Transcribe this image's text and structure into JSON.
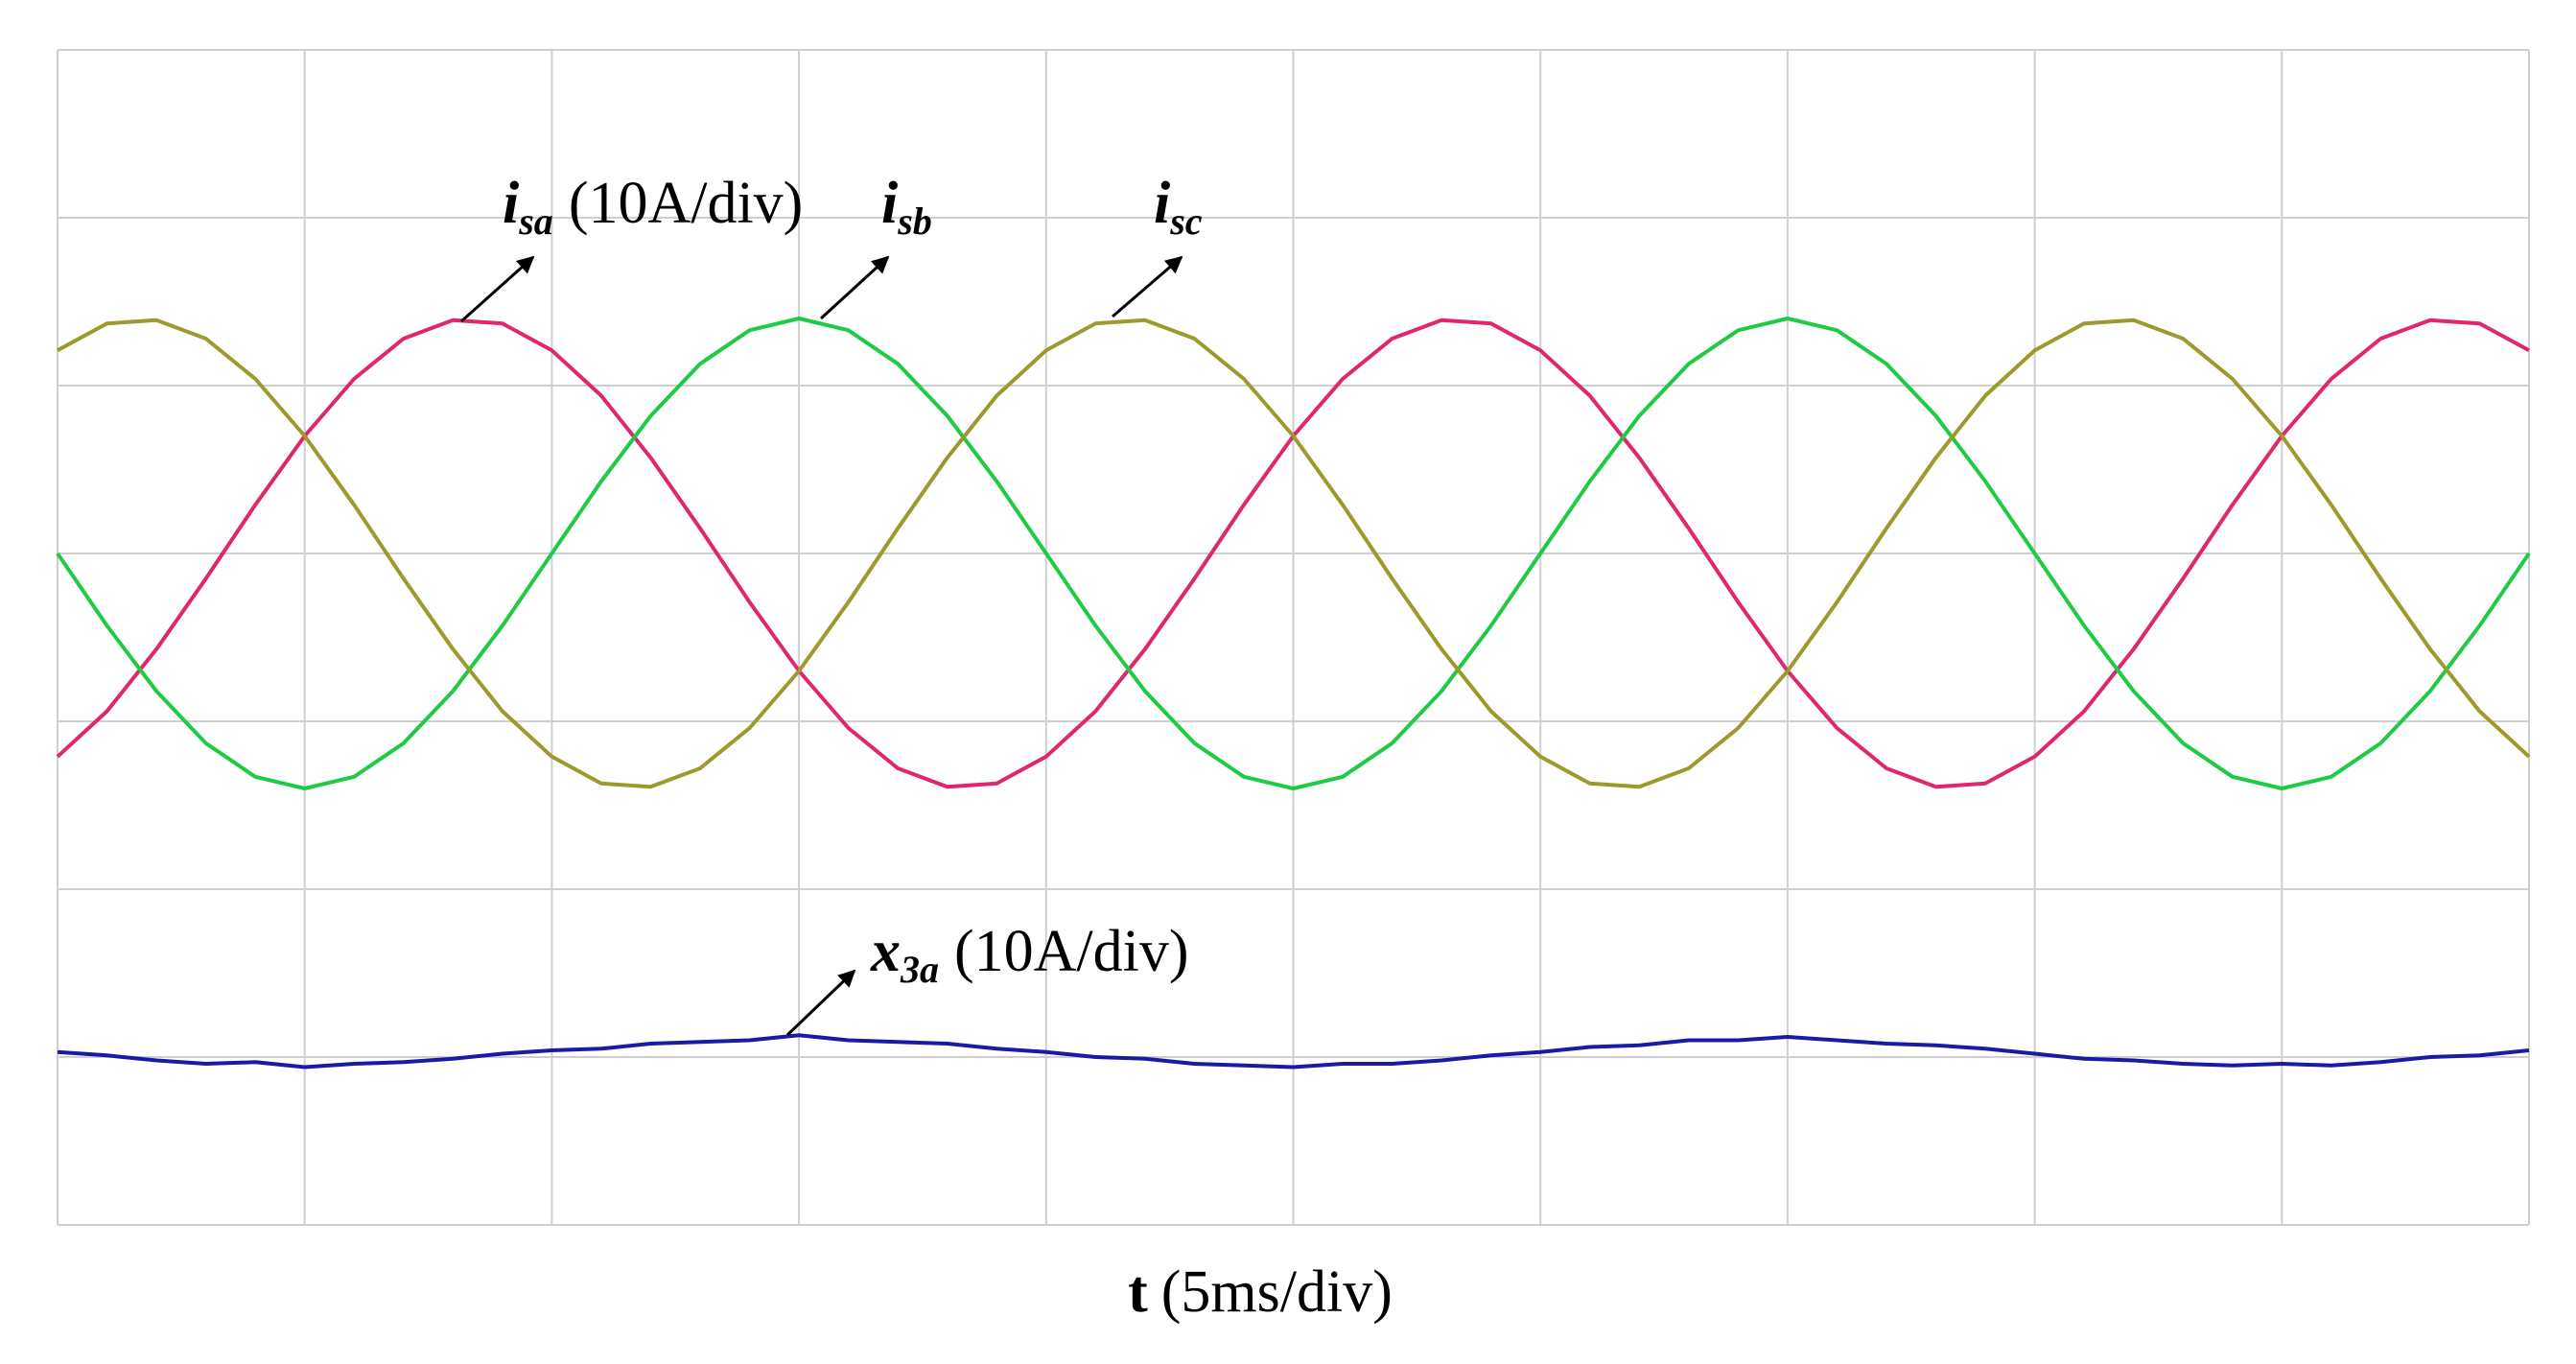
{
  "chart_data": {
    "type": "line",
    "x_label": {
      "symbol": "t",
      "unit": "(5ms/div)"
    },
    "x": [
      0,
      1,
      2,
      3,
      4,
      5,
      6,
      7,
      8,
      9,
      10,
      11,
      12,
      13,
      14,
      15,
      16,
      17,
      18,
      19,
      20,
      21,
      22,
      23,
      24,
      25,
      26,
      27,
      28,
      29,
      30,
      31,
      32,
      33,
      34,
      35,
      36,
      37,
      38,
      39,
      40,
      41,
      42,
      43,
      44,
      45,
      46,
      47,
      48,
      49,
      50
    ],
    "xlim": [
      0,
      50
    ],
    "xticks": [
      0,
      5,
      10,
      15,
      20,
      25,
      30,
      35,
      40,
      45,
      50
    ],
    "ylim": [
      -40,
      30
    ],
    "yticks": [
      -40,
      -30,
      -20,
      -10,
      0,
      10,
      20,
      30
    ],
    "y2lim": [
      -10,
      60
    ],
    "grid": true,
    "series": [
      {
        "label": {
          "symbol": "i",
          "sub": "sa",
          "scale": "(10A/div)"
        },
        "color": "#e0266f",
        "values": [
          -12.1,
          -9.4,
          -5.7,
          -1.5,
          2.9,
          7,
          10.4,
          12.8,
          13.9,
          13.7,
          12.1,
          9.4,
          5.7,
          1.5,
          -2.9,
          -7,
          -10.4,
          -12.8,
          -13.9,
          -13.7,
          -12.1,
          -9.4,
          -5.7,
          -1.5,
          2.9,
          7,
          10.4,
          12.8,
          13.9,
          13.7,
          12.1,
          9.4,
          5.7,
          1.5,
          -2.9,
          -7,
          -10.4,
          -12.8,
          -13.9,
          -13.7,
          -12.1,
          -9.4,
          -5.7,
          -1.5,
          2.9,
          7,
          10.4,
          12.8,
          13.9,
          13.7,
          12.1
        ]
      },
      {
        "label": {
          "symbol": "i",
          "sub": "sb"
        },
        "color": "#1fcb45",
        "values": [
          0,
          -4.3,
          -8.2,
          -11.3,
          -13.3,
          -14,
          -13.3,
          -11.3,
          -8.2,
          -4.3,
          0,
          4.3,
          8.2,
          11.3,
          13.3,
          14,
          13.3,
          11.3,
          8.2,
          4.3,
          0,
          -4.3,
          -8.2,
          -11.3,
          -13.3,
          -14,
          -13.3,
          -11.3,
          -8.2,
          -4.3,
          0,
          4.3,
          8.2,
          11.3,
          13.3,
          14,
          13.3,
          11.3,
          8.2,
          4.3,
          0,
          -4.3,
          -8.2,
          -11.3,
          -13.3,
          -14,
          -13.3,
          -11.3,
          -8.2,
          -4.3,
          0
        ]
      },
      {
        "label": {
          "symbol": "i",
          "sub": "sc"
        },
        "color": "#9c9a2c",
        "values": [
          12.1,
          13.7,
          13.9,
          12.8,
          10.4,
          7,
          2.9,
          -1.5,
          -5.7,
          -9.4,
          -12.1,
          -13.7,
          -13.9,
          -12.8,
          -10.4,
          -7,
          -2.9,
          1.5,
          5.7,
          9.4,
          12.1,
          13.7,
          13.9,
          12.8,
          10.4,
          7,
          2.9,
          -1.5,
          -5.7,
          -9.4,
          -12.1,
          -13.7,
          -13.9,
          -12.8,
          -10.4,
          -7,
          -2.9,
          1.5,
          5.7,
          9.4,
          12.1,
          13.7,
          13.9,
          12.8,
          10.4,
          7,
          2.9,
          -1.5,
          -5.7,
          -9.4,
          -12.1
        ]
      },
      {
        "label": {
          "symbol": "x",
          "sub": "3a",
          "scale": "(10A/div)"
        },
        "color": "#1a1aa6",
        "axis": "y2",
        "values": [
          0.3,
          0.1,
          -0.2,
          -0.4,
          -0.3,
          -0.6,
          -0.4,
          -0.3,
          -0.1,
          0.2,
          0.4,
          0.5,
          0.8,
          0.9,
          1,
          1.3,
          1,
          0.9,
          0.8,
          0.5,
          0.3,
          0,
          -0.1,
          -0.4,
          -0.5,
          -0.6,
          -0.4,
          -0.4,
          -0.2,
          0.1,
          0.3,
          0.6,
          0.7,
          1,
          1,
          1.2,
          1,
          0.8,
          0.7,
          0.5,
          0.2,
          -0.1,
          -0.2,
          -0.4,
          -0.5,
          -0.4,
          -0.5,
          -0.3,
          0,
          0.1,
          0.4
        ]
      }
    ]
  }
}
